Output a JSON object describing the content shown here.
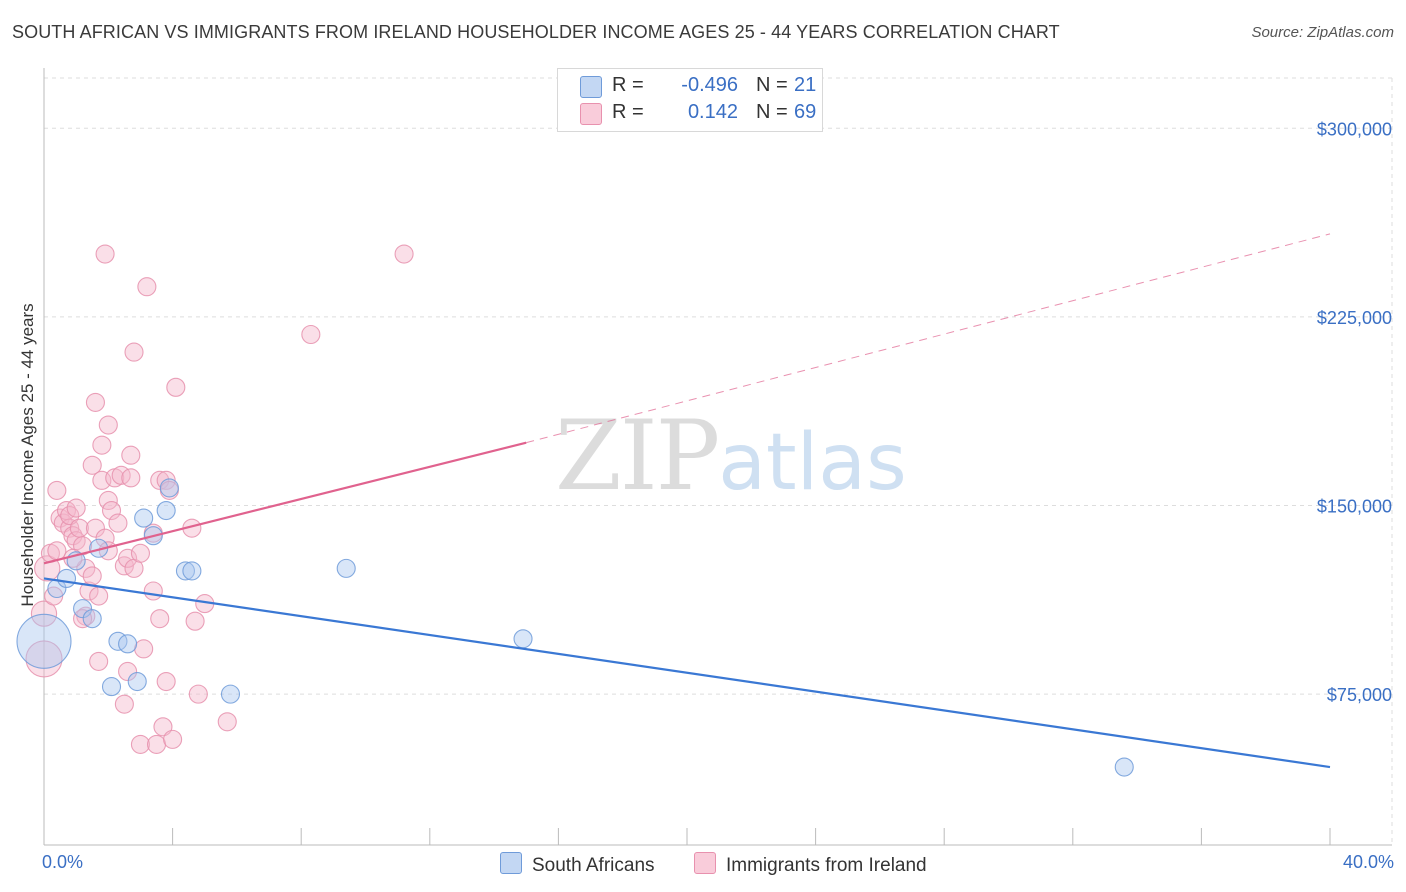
{
  "title": "SOUTH AFRICAN VS IMMIGRANTS FROM IRELAND HOUSEHOLDER INCOME AGES 25 - 44 YEARS CORRELATION CHART",
  "source": "Source: ZipAtlas.com",
  "watermark": {
    "zip": "ZIP",
    "atlas": "atlas"
  },
  "colors": {
    "blue": "#3a78d4",
    "blue_fill": "#aac8f0",
    "pink": "#e0628e",
    "pink_fill": "#f5b8cc",
    "label": "#3a6fc4",
    "grid": "#dddddd"
  },
  "legend": {
    "rows": [
      {
        "r_label": "R =",
        "r_value": "-0.496",
        "n_label": "N =",
        "n_value": "21"
      },
      {
        "r_label": "R =",
        "r_value": "0.142",
        "n_label": "N =",
        "n_value": "69"
      }
    ]
  },
  "chart_data": {
    "type": "scatter",
    "title": "SOUTH AFRICAN VS IMMIGRANTS FROM IRELAND HOUSEHOLDER INCOME AGES 25 - 44 YEARS CORRELATION CHART",
    "xlabel": "",
    "ylabel": "Householder Income Ages 25 - 44 years",
    "xlim": [
      0,
      40
    ],
    "ylim": [
      15000,
      320000
    ],
    "x_tick_labels": [
      "0.0%",
      "40.0%"
    ],
    "y_ticks": [
      75000,
      150000,
      225000,
      300000
    ],
    "y_tick_labels": [
      "$75,000",
      "$150,000",
      "$225,000",
      "$300,000"
    ],
    "legend_position": "bottom-center",
    "series": [
      {
        "name": "South Africans",
        "r": -0.496,
        "n": 21,
        "trend": {
          "x0": 0,
          "y0": 121000,
          "x1": 40,
          "y1": 46000
        },
        "points": [
          {
            "x": 0.0,
            "y": 96000,
            "s": 3
          },
          {
            "x": 0.4,
            "y": 117000
          },
          {
            "x": 0.7,
            "y": 121000
          },
          {
            "x": 1.0,
            "y": 128000
          },
          {
            "x": 1.2,
            "y": 109000
          },
          {
            "x": 1.5,
            "y": 105000
          },
          {
            "x": 1.7,
            "y": 133000
          },
          {
            "x": 2.1,
            "y": 78000
          },
          {
            "x": 2.3,
            "y": 96000
          },
          {
            "x": 2.6,
            "y": 95000
          },
          {
            "x": 2.9,
            "y": 80000
          },
          {
            "x": 3.1,
            "y": 145000
          },
          {
            "x": 3.4,
            "y": 138000
          },
          {
            "x": 3.8,
            "y": 148000
          },
          {
            "x": 3.9,
            "y": 157000
          },
          {
            "x": 4.4,
            "y": 124000
          },
          {
            "x": 4.6,
            "y": 124000
          },
          {
            "x": 5.8,
            "y": 75000
          },
          {
            "x": 9.4,
            "y": 125000
          },
          {
            "x": 14.9,
            "y": 97000
          },
          {
            "x": 33.6,
            "y": 46000
          }
        ]
      },
      {
        "name": "Immigrants from Ireland",
        "r": 0.142,
        "n": 69,
        "trend": {
          "x0": 0,
          "y0": 127000,
          "x1": 15,
          "y1": 175000
        },
        "trend_extension": {
          "x0": 15,
          "y0": 175000,
          "x1": 40,
          "y1": 258000
        },
        "points": [
          {
            "x": 0.0,
            "y": 89000,
            "s": 2
          },
          {
            "x": 0.0,
            "y": 107000,
            "s": 1.4
          },
          {
            "x": 0.1,
            "y": 125000,
            "s": 1.4
          },
          {
            "x": 0.2,
            "y": 131000
          },
          {
            "x": 0.3,
            "y": 114000
          },
          {
            "x": 0.4,
            "y": 156000
          },
          {
            "x": 0.4,
            "y": 132000
          },
          {
            "x": 0.5,
            "y": 145000
          },
          {
            "x": 0.6,
            "y": 143000
          },
          {
            "x": 0.7,
            "y": 148000
          },
          {
            "x": 0.8,
            "y": 141000
          },
          {
            "x": 0.8,
            "y": 146000
          },
          {
            "x": 0.9,
            "y": 138000
          },
          {
            "x": 1.0,
            "y": 149000
          },
          {
            "x": 1.0,
            "y": 136000
          },
          {
            "x": 1.1,
            "y": 141000
          },
          {
            "x": 1.2,
            "y": 134000
          },
          {
            "x": 1.3,
            "y": 106000
          },
          {
            "x": 1.3,
            "y": 125000
          },
          {
            "x": 1.4,
            "y": 116000
          },
          {
            "x": 1.5,
            "y": 122000
          },
          {
            "x": 1.5,
            "y": 166000
          },
          {
            "x": 1.6,
            "y": 141000
          },
          {
            "x": 1.6,
            "y": 191000
          },
          {
            "x": 1.7,
            "y": 114000
          },
          {
            "x": 1.7,
            "y": 88000
          },
          {
            "x": 1.8,
            "y": 174000
          },
          {
            "x": 1.8,
            "y": 160000
          },
          {
            "x": 1.9,
            "y": 250000
          },
          {
            "x": 1.9,
            "y": 137000
          },
          {
            "x": 2.0,
            "y": 182000
          },
          {
            "x": 2.0,
            "y": 152000
          },
          {
            "x": 2.0,
            "y": 132000
          },
          {
            "x": 2.1,
            "y": 148000
          },
          {
            "x": 2.2,
            "y": 161000
          },
          {
            "x": 2.3,
            "y": 143000
          },
          {
            "x": 2.4,
            "y": 162000
          },
          {
            "x": 2.5,
            "y": 126000
          },
          {
            "x": 2.5,
            "y": 71000
          },
          {
            "x": 2.6,
            "y": 84000
          },
          {
            "x": 2.6,
            "y": 129000
          },
          {
            "x": 2.7,
            "y": 170000
          },
          {
            "x": 2.7,
            "y": 161000
          },
          {
            "x": 2.8,
            "y": 211000
          },
          {
            "x": 2.8,
            "y": 125000
          },
          {
            "x": 3.0,
            "y": 131000
          },
          {
            "x": 3.0,
            "y": 55000
          },
          {
            "x": 3.1,
            "y": 93000
          },
          {
            "x": 3.2,
            "y": 237000
          },
          {
            "x": 3.4,
            "y": 139000
          },
          {
            "x": 3.4,
            "y": 116000
          },
          {
            "x": 3.5,
            "y": 55000
          },
          {
            "x": 3.6,
            "y": 160000
          },
          {
            "x": 3.6,
            "y": 105000
          },
          {
            "x": 3.7,
            "y": 62000
          },
          {
            "x": 3.8,
            "y": 160000
          },
          {
            "x": 3.8,
            "y": 80000
          },
          {
            "x": 3.9,
            "y": 156000
          },
          {
            "x": 4.0,
            "y": 57000
          },
          {
            "x": 4.1,
            "y": 197000
          },
          {
            "x": 4.6,
            "y": 141000
          },
          {
            "x": 4.7,
            "y": 104000
          },
          {
            "x": 4.8,
            "y": 75000
          },
          {
            "x": 5.0,
            "y": 111000
          },
          {
            "x": 5.7,
            "y": 64000
          },
          {
            "x": 8.3,
            "y": 218000
          },
          {
            "x": 11.2,
            "y": 250000
          },
          {
            "x": 1.2,
            "y": 105000
          },
          {
            "x": 0.9,
            "y": 129000
          }
        ]
      }
    ]
  }
}
